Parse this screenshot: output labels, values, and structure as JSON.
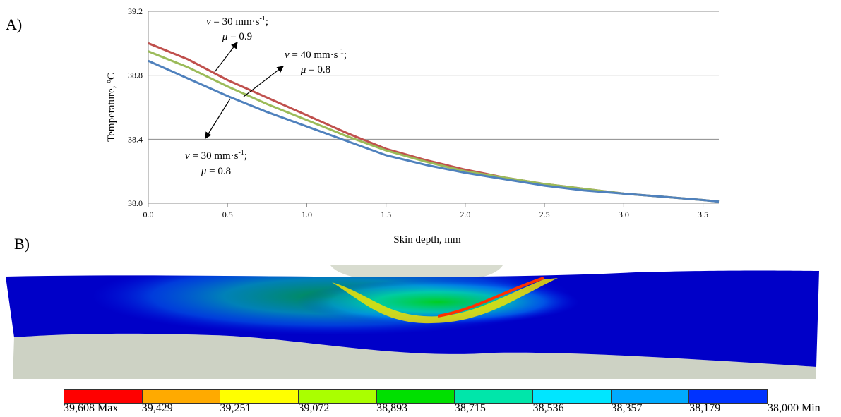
{
  "panels": {
    "a_label": "A)",
    "b_label": "B)"
  },
  "chart_data": {
    "type": "line",
    "xlabel": "Skin depth, mm",
    "ylabel": "Temperature, ºC",
    "xlim": [
      0.0,
      3.6
    ],
    "ylim": [
      38.0,
      39.2
    ],
    "x_ticks": [
      "0.0",
      "0.5",
      "1.0",
      "1.5",
      "2.0",
      "2.5",
      "3.0",
      "3.5"
    ],
    "y_ticks": [
      "38.0",
      "38.4",
      "38.8",
      "39.2"
    ],
    "grid": "horizontal",
    "x": [
      0.0,
      0.25,
      0.5,
      0.75,
      1.0,
      1.25,
      1.5,
      1.75,
      2.0,
      2.25,
      2.5,
      2.75,
      3.0,
      3.25,
      3.5,
      3.6
    ],
    "series": [
      {
        "name": "v = 30 mm·s-1; μ = 0.9",
        "color": "#c0504d",
        "values": [
          39.0,
          38.9,
          38.77,
          38.66,
          38.55,
          38.44,
          38.34,
          38.27,
          38.21,
          38.16,
          38.12,
          38.09,
          38.06,
          38.04,
          38.02,
          38.01
        ]
      },
      {
        "name": "v = 40 mm·s-1; μ = 0.8",
        "color": "#9bbb59",
        "values": [
          38.95,
          38.85,
          38.73,
          38.62,
          38.52,
          38.42,
          38.33,
          38.26,
          38.2,
          38.16,
          38.12,
          38.09,
          38.06,
          38.04,
          38.02,
          38.01
        ]
      },
      {
        "name": "v = 30 mm·s-1; μ = 0.8",
        "color": "#4f81bd",
        "values": [
          38.89,
          38.78,
          38.67,
          38.57,
          38.48,
          38.39,
          38.3,
          38.24,
          38.19,
          38.15,
          38.11,
          38.08,
          38.06,
          38.04,
          38.02,
          38.01
        ]
      }
    ],
    "annotations": [
      {
        "v": "v",
        "rest": " = 30 mm·s",
        "sup": "-1",
        "end": ";",
        "mu": "μ",
        "mu_rest": " = 0.9"
      },
      {
        "v": "v",
        "rest": " = 40 mm·s",
        "sup": "-1",
        "end": ";",
        "mu": "μ",
        "mu_rest": " = 0.8"
      },
      {
        "v": "v",
        "rest": " = 30 mm·s",
        "sup": "-1",
        "end": ";",
        "mu": "μ",
        "mu_rest": " = 0.8"
      }
    ]
  },
  "contour_legend": {
    "colors": [
      "#ff0000",
      "#ffaa00",
      "#ffff00",
      "#aaff00",
      "#00e000",
      "#00e6aa",
      "#00e6ff",
      "#00aaff",
      "#0033ff"
    ],
    "labels": [
      "39,608 Max",
      "39,429",
      "39,251",
      "39,072",
      "38,893",
      "38,715",
      "38,536",
      "38,357",
      "38,179",
      "38,000 Min"
    ]
  }
}
